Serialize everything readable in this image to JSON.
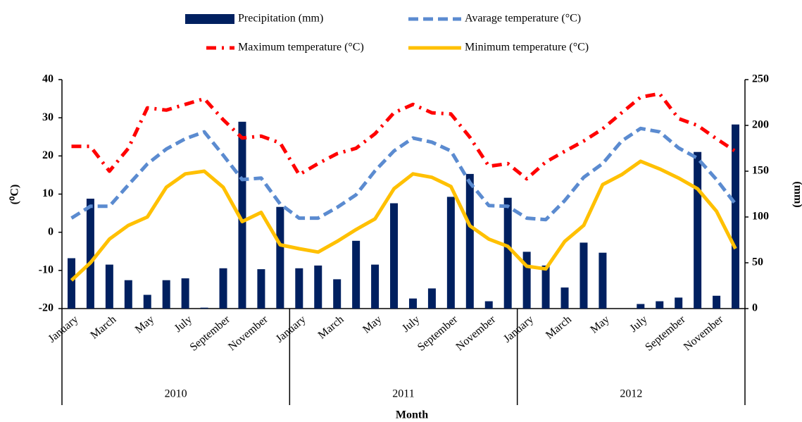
{
  "chart_data": {
    "type": "combo",
    "categories": [
      "January",
      null,
      "March",
      null,
      "May",
      null,
      "July",
      null,
      "September",
      null,
      "November",
      null,
      "January",
      null,
      "March",
      null,
      "May",
      null,
      "July",
      null,
      "September",
      null,
      "November",
      null,
      "January",
      null,
      "March",
      null,
      "May",
      null,
      "July",
      null,
      "September",
      null,
      "November",
      null
    ],
    "groups": [
      "2010",
      "2011",
      "2012"
    ],
    "x_label": "Month",
    "y_label": "(⁰C)",
    "y2_label": "(mm)",
    "ylim": [
      -20,
      40
    ],
    "yticks": [
      -20,
      -10,
      0,
      10,
      20,
      30,
      40
    ],
    "y2lim": [
      0,
      250
    ],
    "y2ticks": [
      0,
      50,
      100,
      150,
      200,
      250
    ],
    "series": [
      {
        "name": "Precipitation (mm)",
        "type": "bar",
        "axis": "y2",
        "color": "#002060",
        "values": [
          55,
          120,
          48,
          31,
          15,
          31,
          33,
          1,
          44,
          204,
          43,
          111,
          44,
          47,
          32,
          74,
          48,
          115,
          11,
          22,
          122,
          147,
          8,
          121,
          62,
          47,
          23,
          72,
          61,
          0,
          5,
          8,
          12,
          171,
          14,
          201
        ]
      },
      {
        "name": "Avarage temperature (°C)",
        "type": "line",
        "style": "dashed",
        "color": "#5b8bd0",
        "values": [
          3.7,
          6.8,
          6.8,
          12.4,
          17.9,
          21.8,
          24.5,
          26.3,
          20.2,
          13.8,
          14.2,
          7.4,
          3.7,
          3.7,
          6.5,
          9.8,
          16.1,
          21.3,
          24.7,
          23.6,
          21.3,
          13,
          7,
          6.8,
          3.7,
          3.3,
          8.3,
          14.4,
          18,
          23.9,
          27.2,
          26.3,
          22.1,
          19.4,
          13.8,
          7.4
        ]
      },
      {
        "name": "Maximum temperature (°C)",
        "type": "line",
        "style": "dashdot",
        "color": "#ff0000",
        "values": [
          22.5,
          22.5,
          16,
          22,
          32.6,
          32,
          33.5,
          35,
          29.5,
          24.7,
          25.2,
          23.4,
          15.1,
          18,
          20.6,
          22,
          25.8,
          31.3,
          33.5,
          31.3,
          31,
          24.9,
          17.3,
          18,
          14,
          18.4,
          21.2,
          23.9,
          27.1,
          31.3,
          35.4,
          36.3,
          29.8,
          28,
          24.5,
          21.2
        ]
      },
      {
        "name": "Minimum temperature (°C)",
        "type": "line",
        "style": "solid",
        "color": "#ffc000",
        "values": [
          -12.6,
          -8,
          -1.8,
          1.8,
          4,
          11.8,
          15.3,
          16,
          11.8,
          2.8,
          5.2,
          -3.3,
          -4.3,
          -5.2,
          -2.4,
          0.7,
          3.5,
          11.4,
          15.3,
          14.4,
          12,
          1.7,
          -1.8,
          -3.7,
          -8.9,
          -9.6,
          -2.4,
          1.8,
          12.5,
          15.1,
          18.6,
          16.6,
          14.2,
          11.4,
          5.5,
          -4.3
        ]
      }
    ]
  }
}
